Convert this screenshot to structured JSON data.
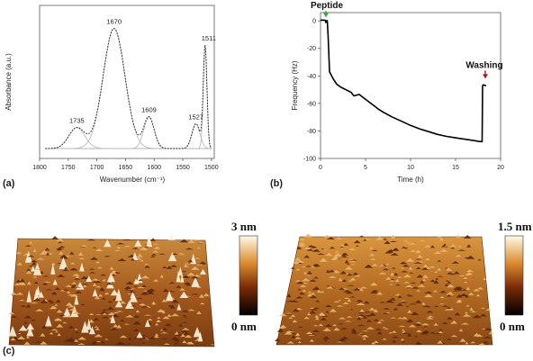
{
  "figure": {
    "panel_a": "(a)",
    "panel_b": "(b)",
    "panel_c": "(c)",
    "afm_left_max": "3 nm",
    "afm_left_min": "0 nm",
    "afm_right_max": "1.5 nm",
    "afm_right_min": "0 nm"
  },
  "chart_data": [
    {
      "type": "line",
      "xlabel": "Wavenumber (cm⁻¹)",
      "ylabel": "Absorbance (a.u.)",
      "xlim": [
        1800,
        1495
      ],
      "x_reversed": true,
      "xticks": [
        "1800",
        "1750",
        "1700",
        "1650",
        "1600",
        "1550",
        "1500"
      ],
      "y_ticks_shown": false,
      "peaks": [
        {
          "label": "1735",
          "position": 1735,
          "height": 0.16,
          "width": 14
        },
        {
          "label": "1670",
          "position": 1670,
          "height": 0.92,
          "width": 19
        },
        {
          "label": "1609",
          "position": 1609,
          "height": 0.24,
          "width": 9
        },
        {
          "label": "1527",
          "position": 1527,
          "height": 0.19,
          "width": 7
        },
        {
          "label": "1511",
          "position": 1511,
          "height": 0.78,
          "width": 3.2
        }
      ],
      "series": [
        {
          "role": "envelope",
          "style": "dotted",
          "color": "#222222"
        },
        {
          "role": "components",
          "style": "solid",
          "color": "#b5b5b5"
        }
      ]
    },
    {
      "type": "line",
      "xlabel": "Time (h)",
      "ylabel": "Frequency (Hz)",
      "xlim": [
        0,
        20
      ],
      "ylim": [
        -100,
        6
      ],
      "xticks": [
        0,
        5,
        10,
        15,
        20
      ],
      "yticks": [
        0,
        -20,
        -40,
        -60,
        -80,
        -100
      ],
      "annotations": [
        {
          "text": "Peptide",
          "x": 0.6,
          "arrow_color": "#3aa648"
        },
        {
          "text": "Washing",
          "x": 18.3,
          "arrow_color": "#9b1c1c"
        }
      ],
      "series": [
        {
          "color": "#000000",
          "x": [
            0,
            0.1,
            0.35,
            0.55,
            0.58,
            0.62,
            0.66,
            0.75,
            0.85,
            1.0,
            1.4,
            1.8,
            2.2,
            2.8,
            3.4,
            3.7,
            4.0,
            4.3,
            4.6,
            5.0,
            5.5,
            6.0,
            6.5,
            7.0,
            8.0,
            9.0,
            10.0,
            11.0,
            12.0,
            13.0,
            14.0,
            15.0,
            16.0,
            17.0,
            17.5,
            17.95,
            18.0,
            18.1,
            18.2,
            18.3,
            18.4
          ],
          "y": [
            0.5,
            0.6,
            0.5,
            0.4,
            -1.2,
            -0.5,
            0.0,
            0.1,
            -12,
            -37,
            -42,
            -46,
            -48,
            -50,
            -52,
            -54.5,
            -54,
            -53.5,
            -55,
            -57,
            -59.5,
            -62,
            -64.5,
            -66.5,
            -70,
            -73,
            -76,
            -78.5,
            -80.5,
            -82.5,
            -84,
            -85,
            -86,
            -87,
            -87.5,
            -87.8,
            -47,
            -46.5,
            -46.8,
            -47,
            -47
          ]
        }
      ]
    }
  ]
}
